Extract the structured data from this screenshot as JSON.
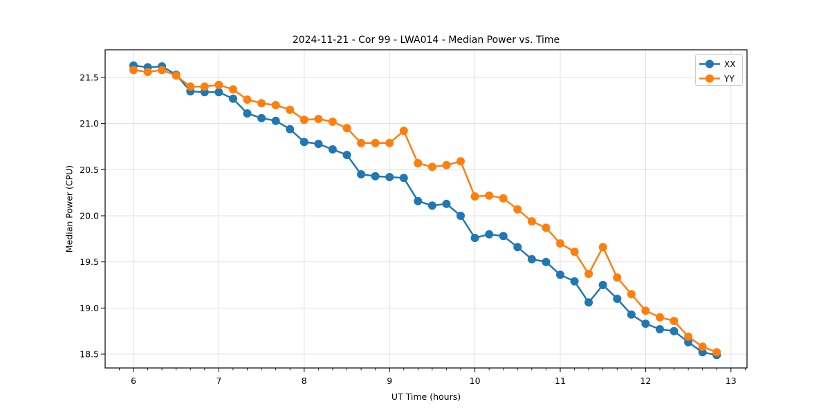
{
  "chart_data": {
    "type": "line",
    "title": "2024-11-21 - Cor 99 - LWA014 - Median Power vs. Time",
    "xlabel": "UT Time (hours)",
    "ylabel": "Median Power (CPU)",
    "xlim": [
      5.668,
      13.188
    ],
    "ylim": [
      18.35,
      21.8
    ],
    "xticks": [
      6,
      7,
      8,
      9,
      10,
      11,
      12,
      13
    ],
    "yticks": [
      18.5,
      19.0,
      19.5,
      20.0,
      20.5,
      21.0,
      21.5
    ],
    "x_minor_interval_hours": 0.1667,
    "grid": true,
    "legend_position": "upper right",
    "x": [
      6.0,
      6.167,
      6.333,
      6.5,
      6.667,
      6.833,
      7.0,
      7.167,
      7.333,
      7.5,
      7.667,
      7.833,
      8.0,
      8.167,
      8.333,
      8.5,
      8.667,
      8.833,
      9.0,
      9.167,
      9.333,
      9.5,
      9.667,
      9.833,
      10.0,
      10.167,
      10.333,
      10.5,
      10.667,
      10.833,
      11.0,
      11.167,
      11.333,
      11.5,
      11.667,
      11.833,
      12.0,
      12.167,
      12.333,
      12.5,
      12.667,
      12.833
    ],
    "series": [
      {
        "name": "XX",
        "color": "#1f77b4",
        "values": [
          21.63,
          21.61,
          21.62,
          21.53,
          21.35,
          21.34,
          21.34,
          21.27,
          21.11,
          21.06,
          21.03,
          20.94,
          20.8,
          20.78,
          20.72,
          20.66,
          20.45,
          20.43,
          20.42,
          20.41,
          20.16,
          20.11,
          20.13,
          20.0,
          19.76,
          19.8,
          19.78,
          19.66,
          19.53,
          19.5,
          19.36,
          19.29,
          19.06,
          19.25,
          19.1,
          18.93,
          18.83,
          18.77,
          18.75,
          18.63,
          18.52,
          18.49
        ]
      },
      {
        "name": "YY",
        "color": "#ff7f0e",
        "values": [
          21.58,
          21.56,
          21.58,
          21.52,
          21.4,
          21.4,
          21.42,
          21.37,
          21.26,
          21.22,
          21.2,
          21.15,
          21.04,
          21.05,
          21.02,
          20.95,
          20.79,
          20.79,
          20.79,
          20.92,
          20.57,
          20.53,
          20.55,
          20.59,
          20.21,
          20.22,
          20.19,
          20.07,
          19.94,
          19.87,
          19.7,
          19.61,
          19.37,
          19.66,
          19.33,
          19.15,
          18.97,
          18.9,
          18.86,
          18.69,
          18.58,
          18.52
        ]
      }
    ]
  }
}
